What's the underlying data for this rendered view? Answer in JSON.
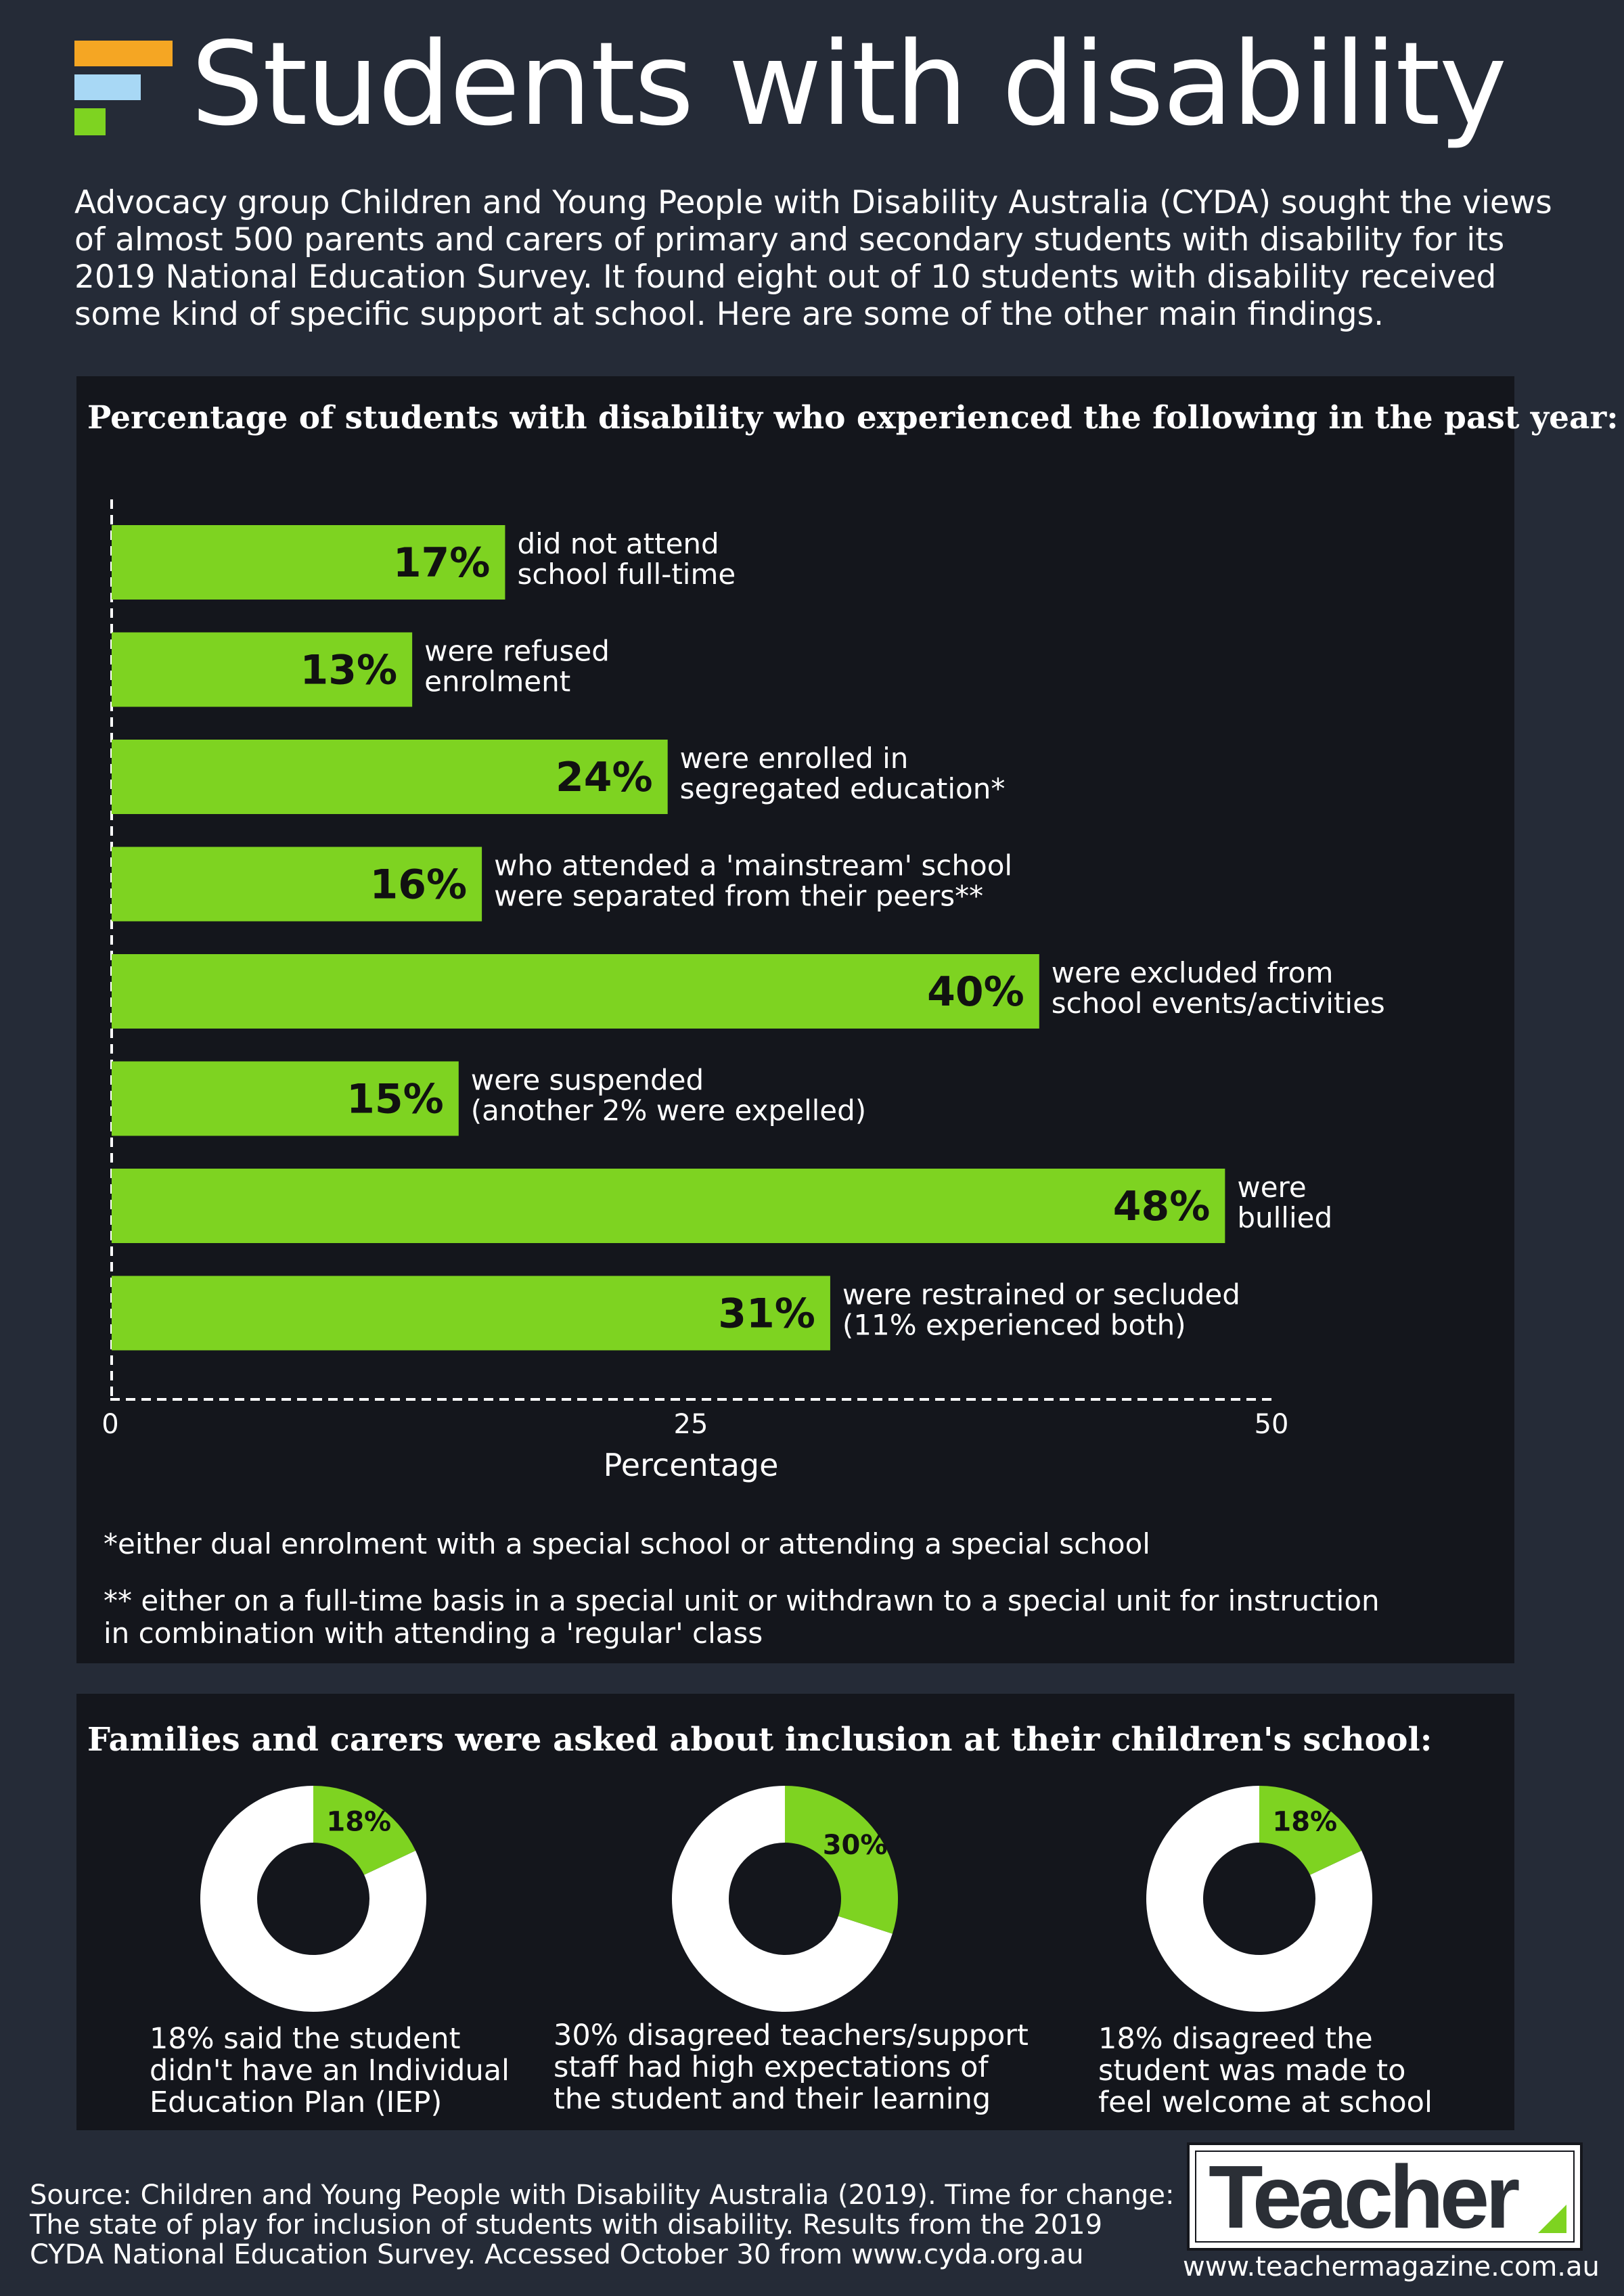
{
  "header": {
    "title": "Students with disability",
    "intro": "Advocacy group Children and Young People with Disability Australia (CYDA) sought the views of almost 500 parents and carers of primary and secondary students with disability for its 2019 National Education Survey. It found eight out of 10 students with disability received some kind of specific support at school. Here are some of the other main findings."
  },
  "colors": {
    "background": "#252b37",
    "panel": "#14161c",
    "accent_green": "#7ed321",
    "accent_orange": "#f5a623",
    "accent_blue": "#a8d8f5",
    "donut_remainder": "#ffffff"
  },
  "chart_data": [
    {
      "type": "bar",
      "orientation": "horizontal",
      "title": "Percentage of students with disability who experienced the following in the past year:",
      "xlabel": "Percentage",
      "xlim": [
        0,
        50
      ],
      "xticks": [
        0,
        25,
        50
      ],
      "categories": [
        [
          "did not attend",
          "school full-time"
        ],
        [
          "were refused",
          "enrolment"
        ],
        [
          "were enrolled in",
          "segregated education*"
        ],
        [
          "who attended a 'mainstream' school",
          "were separated from their peers**"
        ],
        [
          "were excluded from",
          "school events/activities"
        ],
        [
          "were suspended",
          "(another 2% were expelled)"
        ],
        [
          "were",
          "bullied"
        ],
        [
          "were restrained or secluded",
          "(11% experienced both)"
        ]
      ],
      "values": [
        17,
        13,
        24,
        16,
        40,
        15,
        48,
        31
      ],
      "value_labels": [
        "17%",
        "13%",
        "24%",
        "16%",
        "40%",
        "15%",
        "48%",
        "31%"
      ],
      "footnotes": [
        "*either dual enrolment with a special school or attending a special school",
        "** either on a full-time basis in a special unit or withdrawn to a special unit for instruction in combination with attending a 'regular' class"
      ]
    },
    {
      "type": "pie",
      "title": "Families and carers were asked about inclusion at their children's school:",
      "donuts": [
        {
          "value": 18,
          "label": "18%",
          "caption": "18% said the student didn't have an Individual Education Plan (IEP)"
        },
        {
          "value": 30,
          "label": "30%",
          "caption": "30% disagreed teachers/support staff had high expectations of the student and their learning"
        },
        {
          "value": 18,
          "label": "18%",
          "caption": "18% disagreed the student was made to feel welcome at school"
        }
      ]
    }
  ],
  "footer": {
    "source": "Source:  Children and Young People with Disability Australia (2019). Time for change: The state of play for inclusion of students with disability. Results from the 2019 CYDA National Education Survey. Accessed October 30 from www.cyda.org.au",
    "logo_text": "Teacher",
    "website": "www.teachermagazine.com.au"
  }
}
